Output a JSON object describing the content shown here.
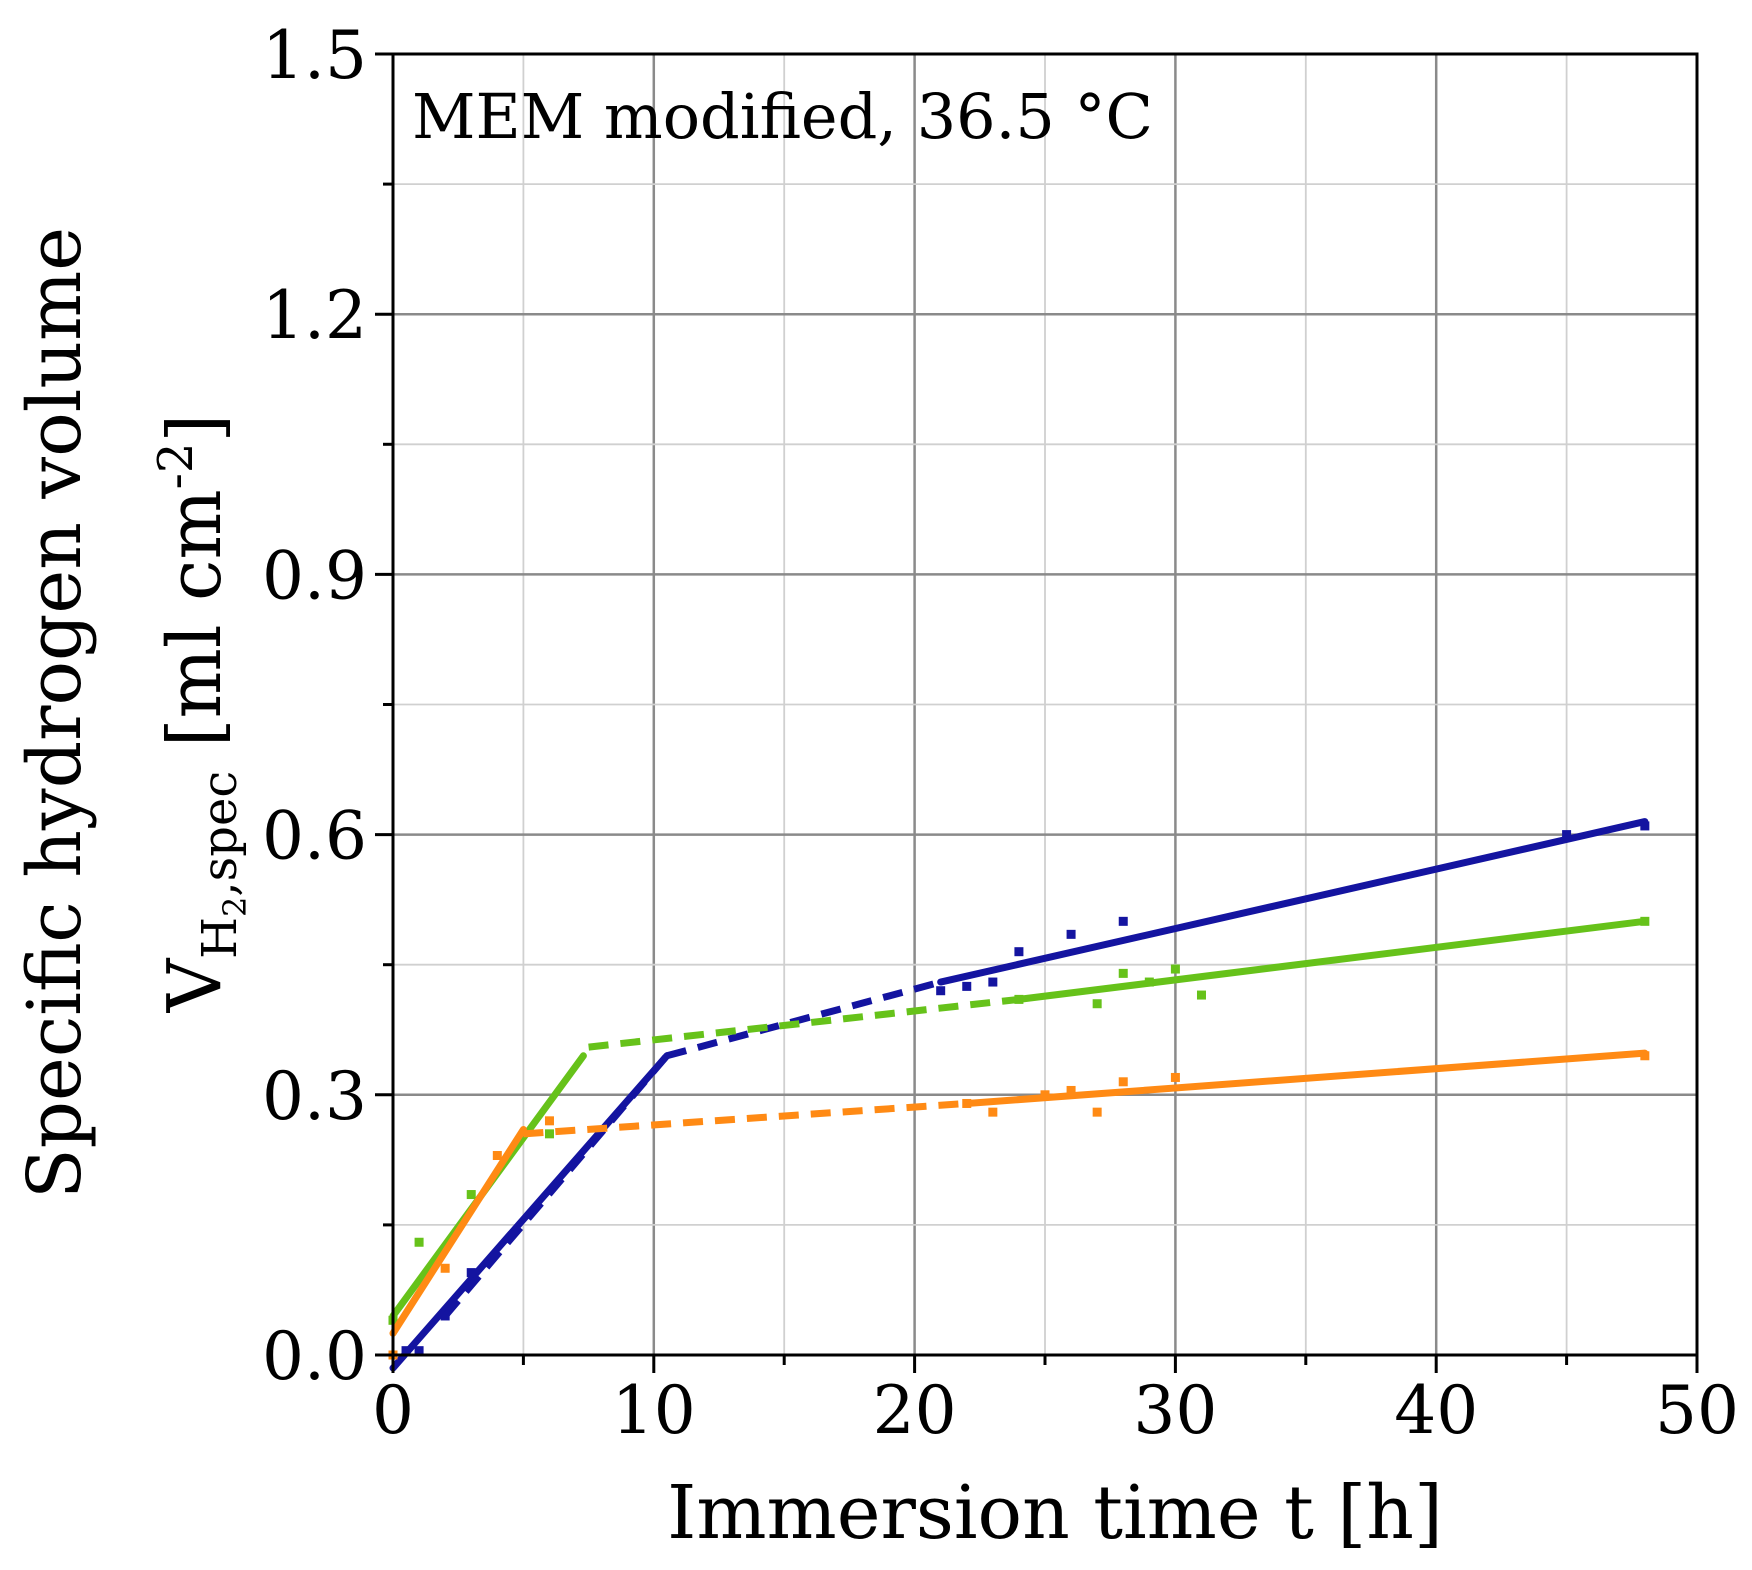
{
  "chart_data": {
    "type": "line",
    "annotation": "MEM modified, 36.5 °C",
    "xlabel": "Immersion time t [h]",
    "ylabel_line1": "Specific hydrogen volume",
    "ylabel_line2": {
      "V": "V",
      "H": "H",
      "sub2": "2",
      "spec": ",spec",
      "unit_open": " [ml cm",
      "unit_exp": "-2",
      "unit_close": "]"
    },
    "xlim": [
      0,
      50
    ],
    "ylim": [
      0,
      1.5
    ],
    "x_ticks": [
      0,
      10,
      20,
      30,
      40,
      50
    ],
    "y_ticks": [
      0.0,
      0.3,
      0.6,
      0.9,
      1.2,
      1.5
    ],
    "x_tick_labels": [
      "0",
      "10",
      "20",
      "30",
      "40",
      "50"
    ],
    "y_tick_labels": [
      "0.0",
      "0.3",
      "0.6",
      "0.9",
      "1.2",
      "1.5"
    ],
    "x_minor_step": 5,
    "y_minor_step": 0.15,
    "grid": true,
    "series": [
      {
        "name": "blue",
        "color": "#1414a0",
        "points": [
          [
            0.5,
            0.005
          ],
          [
            1,
            0.005
          ],
          [
            2,
            0.045
          ],
          [
            3,
            0.095
          ],
          [
            21,
            0.42
          ],
          [
            22,
            0.425
          ],
          [
            23,
            0.43
          ],
          [
            24,
            0.465
          ],
          [
            26,
            0.485
          ],
          [
            28,
            0.5
          ],
          [
            45,
            0.6
          ],
          [
            48,
            0.61
          ]
        ],
        "segments": [
          {
            "from": [
              0,
              -0.015
            ],
            "to": [
              10.5,
              0.345
            ],
            "style": "solid"
          },
          {
            "from": [
              2,
              0.045
            ],
            "to": [
              10.5,
              0.345
            ],
            "style": "dashed"
          },
          {
            "from": [
              10.5,
              0.345
            ],
            "to": [
              21,
              0.43
            ],
            "style": "dashed"
          },
          {
            "from": [
              21,
              0.43
            ],
            "to": [
              48,
              0.615
            ],
            "style": "solid"
          }
        ]
      },
      {
        "name": "green",
        "color": "#66c21a",
        "points": [
          [
            0,
            0.04
          ],
          [
            1,
            0.13
          ],
          [
            3,
            0.185
          ],
          [
            6,
            0.255
          ],
          [
            24,
            0.41
          ],
          [
            27,
            0.405
          ],
          [
            28,
            0.44
          ],
          [
            29,
            0.43
          ],
          [
            30,
            0.445
          ],
          [
            31,
            0.415
          ],
          [
            48,
            0.5
          ]
        ],
        "segments": [
          {
            "from": [
              0,
              0.045
            ],
            "to": [
              7.3,
              0.345
            ],
            "style": "solid"
          },
          {
            "from": [
              7.5,
              0.355
            ],
            "to": [
              24,
              0.41
            ],
            "style": "dashed"
          },
          {
            "from": [
              24,
              0.41
            ],
            "to": [
              48,
              0.5
            ],
            "style": "solid"
          }
        ]
      },
      {
        "name": "orange",
        "color": "#ff8a14",
        "points": [
          [
            0,
            0.0
          ],
          [
            2,
            0.1
          ],
          [
            4,
            0.23
          ],
          [
            6,
            0.27
          ],
          [
            22,
            0.29
          ],
          [
            23,
            0.28
          ],
          [
            25,
            0.3
          ],
          [
            26,
            0.305
          ],
          [
            27,
            0.28
          ],
          [
            28,
            0.315
          ],
          [
            30,
            0.32
          ],
          [
            48,
            0.345
          ]
        ],
        "segments": [
          {
            "from": [
              0,
              0.025
            ],
            "to": [
              5,
              0.26
            ],
            "style": "solid"
          },
          {
            "from": [
              5,
              0.255
            ],
            "to": [
              22,
              0.29
            ],
            "style": "dashed"
          },
          {
            "from": [
              22,
              0.29
            ],
            "to": [
              48,
              0.348
            ],
            "style": "solid"
          }
        ]
      }
    ]
  }
}
